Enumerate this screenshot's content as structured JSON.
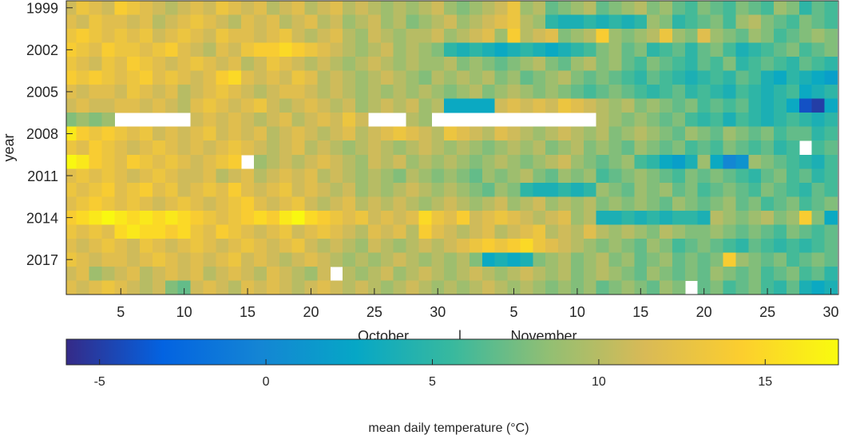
{
  "chart_data": {
    "type": "heatmap",
    "ylabel": "year",
    "xlabel": [
      "October",
      "|",
      "November"
    ],
    "x": [
      1,
      2,
      3,
      4,
      5,
      6,
      7,
      8,
      9,
      10,
      11,
      12,
      13,
      14,
      15,
      16,
      17,
      18,
      19,
      20,
      21,
      22,
      23,
      24,
      25,
      26,
      27,
      28,
      29,
      30,
      31,
      32,
      33,
      34,
      35,
      36,
      37,
      38,
      39,
      40,
      41,
      42,
      43,
      44,
      45,
      46,
      47,
      48,
      49,
      50,
      51,
      52,
      53,
      54,
      55,
      56,
      57,
      58,
      59,
      60,
      61
    ],
    "y": [
      1999,
      2000,
      2001,
      2002,
      2003,
      2004,
      2005,
      2006,
      2007,
      2008,
      2009,
      2010,
      2011,
      2012,
      2013,
      2014,
      2015,
      2016,
      2017,
      2018,
      2019
    ],
    "xlim": [
      0.7,
      61.6
    ],
    "ylim": [
      1998.5,
      2019.5
    ],
    "xticks": [
      5,
      10,
      15,
      20,
      25,
      30,
      {
        "value": 36,
        "label": "5"
      },
      {
        "value": 41,
        "label": "10"
      },
      {
        "value": 46,
        "label": "15"
      },
      {
        "value": 51,
        "label": "20"
      },
      {
        "value": 56,
        "label": "25"
      },
      {
        "value": 61,
        "label": "30"
      }
    ],
    "yticks": [
      1999,
      2002,
      2005,
      2008,
      2011,
      2014,
      2017
    ],
    "colormap": "parula",
    "colorbar": {
      "label": "mean daily temperature (°C)",
      "lim": [
        -6,
        17.2
      ],
      "ticks": [
        -5,
        0,
        5,
        10,
        15
      ]
    },
    "values": [
      [
        11,
        13,
        12,
        11,
        14,
        13,
        12,
        11,
        10,
        11,
        12,
        11,
        13,
        12,
        11,
        12,
        10,
        11,
        12,
        10,
        11,
        12,
        10,
        11,
        10,
        9,
        10,
        9,
        10,
        11,
        9,
        8,
        9,
        10,
        11,
        13,
        9,
        10,
        7,
        8,
        9,
        10,
        7,
        8,
        9,
        10,
        8,
        9,
        7,
        6,
        8,
        7,
        6,
        8,
        7,
        6,
        9,
        8,
        5,
        7,
        6
      ],
      [
        12,
        11,
        13,
        12,
        12,
        11,
        12,
        10,
        11,
        12,
        13,
        12,
        11,
        10,
        12,
        11,
        12,
        10,
        11,
        12,
        10,
        11,
        9,
        10,
        11,
        9,
        10,
        8,
        9,
        10,
        11,
        9,
        10,
        11,
        12,
        13,
        10,
        9,
        5,
        4,
        4,
        5,
        4,
        5,
        4,
        5,
        9,
        8,
        5,
        6,
        7,
        8,
        6,
        9,
        10,
        8,
        7,
        6,
        8,
        7,
        6
      ],
      [
        13,
        14,
        13,
        12,
        13,
        12,
        13,
        11,
        12,
        13,
        12,
        11,
        13,
        12,
        12,
        11,
        12,
        13,
        11,
        10,
        11,
        12,
        10,
        9,
        11,
        10,
        9,
        10,
        10,
        11,
        9,
        10,
        11,
        12,
        9,
        14,
        10,
        11,
        12,
        8,
        9,
        10,
        14,
        9,
        8,
        9,
        10,
        13,
        9,
        8,
        12,
        9,
        8,
        7,
        9,
        8,
        6,
        7,
        8,
        9,
        8
      ],
      [
        14,
        13,
        12,
        14,
        13,
        13,
        12,
        13,
        14,
        12,
        11,
        10,
        12,
        11,
        13,
        14,
        14,
        15,
        14,
        13,
        12,
        11,
        10,
        9,
        10,
        11,
        9,
        10,
        9,
        8,
        5,
        4,
        5,
        4,
        3,
        4,
        5,
        4,
        3,
        4,
        5,
        6,
        8,
        9,
        7,
        8,
        5,
        6,
        7,
        5,
        7,
        8,
        6,
        4,
        5,
        6,
        7,
        8,
        6,
        7,
        8
      ],
      [
        13,
        12,
        11,
        13,
        12,
        14,
        13,
        12,
        11,
        12,
        13,
        12,
        11,
        12,
        10,
        11,
        13,
        12,
        11,
        10,
        11,
        10,
        9,
        10,
        11,
        10,
        9,
        10,
        9,
        9,
        10,
        8,
        9,
        8,
        7,
        8,
        9,
        10,
        8,
        7,
        9,
        10,
        8,
        9,
        7,
        6,
        8,
        7,
        6,
        5,
        7,
        6,
        8,
        5,
        6,
        7,
        6,
        5,
        7,
        6,
        5
      ],
      [
        14,
        13,
        14,
        13,
        12,
        13,
        14,
        12,
        13,
        12,
        11,
        12,
        14,
        15,
        12,
        11,
        12,
        11,
        13,
        12,
        10,
        11,
        10,
        9,
        10,
        11,
        10,
        9,
        8,
        10,
        9,
        10,
        9,
        10,
        8,
        9,
        7,
        8,
        9,
        10,
        8,
        7,
        8,
        7,
        6,
        5,
        7,
        6,
        5,
        4,
        5,
        6,
        5,
        7,
        6,
        4,
        3,
        5,
        4,
        3,
        2
      ],
      [
        12,
        11,
        12,
        12,
        11,
        13,
        12,
        11,
        12,
        10,
        11,
        12,
        13,
        12,
        11,
        10,
        11,
        12,
        12,
        11,
        10,
        11,
        10,
        9,
        10,
        9,
        10,
        9,
        10,
        9,
        8,
        9,
        10,
        8,
        9,
        10,
        9,
        8,
        9,
        8,
        7,
        6,
        7,
        8,
        7,
        6,
        5,
        6,
        7,
        5,
        6,
        5,
        4,
        6,
        5,
        4,
        5,
        6,
        3,
        4,
        5
      ],
      [
        11,
        12,
        11,
        11,
        12,
        12,
        11,
        12,
        11,
        10,
        12,
        13,
        12,
        11,
        12,
        13,
        11,
        10,
        11,
        12,
        11,
        10,
        11,
        9,
        10,
        11,
        10,
        11,
        9,
        10,
        3,
        3,
        3,
        3,
        11,
        12,
        11,
        12,
        11,
        13,
        12,
        11,
        10,
        9,
        10,
        8,
        9,
        8,
        7,
        8,
        6,
        7,
        6,
        7,
        5,
        4,
        5,
        3,
        -4,
        -5,
        3
      ],
      [
        8,
        9,
        8,
        9,
        null,
        null,
        null,
        null,
        null,
        null,
        11,
        12,
        11,
        12,
        11,
        10,
        11,
        12,
        10,
        11,
        12,
        11,
        13,
        11,
        null,
        null,
        null,
        10,
        9,
        null,
        null,
        null,
        null,
        null,
        null,
        null,
        null,
        null,
        null,
        null,
        null,
        null,
        10,
        9,
        8,
        9,
        8,
        7,
        8,
        6,
        5,
        6,
        4,
        6,
        5,
        4,
        5,
        6,
        5,
        4,
        5
      ],
      [
        16,
        14,
        13,
        14,
        13,
        12,
        13,
        11,
        12,
        11,
        12,
        13,
        11,
        12,
        11,
        12,
        10,
        11,
        12,
        11,
        10,
        11,
        12,
        10,
        11,
        12,
        13,
        12,
        11,
        10,
        13,
        12,
        11,
        10,
        12,
        11,
        10,
        9,
        10,
        11,
        10,
        9,
        10,
        8,
        9,
        10,
        9,
        8,
        7,
        9,
        8,
        7,
        9,
        8,
        7,
        8,
        6,
        7,
        7,
        5,
        6
      ],
      [
        13,
        12,
        14,
        13,
        12,
        11,
        12,
        13,
        12,
        11,
        12,
        11,
        12,
        13,
        12,
        11,
        10,
        11,
        12,
        10,
        11,
        10,
        9,
        10,
        11,
        10,
        9,
        10,
        11,
        10,
        9,
        10,
        9,
        8,
        9,
        10,
        9,
        10,
        8,
        9,
        10,
        8,
        9,
        8,
        7,
        9,
        8,
        7,
        8,
        6,
        7,
        6,
        8,
        7,
        6,
        7,
        5,
        6,
        null,
        6,
        7
      ],
      [
        17,
        16,
        14,
        13,
        12,
        14,
        13,
        12,
        13,
        12,
        11,
        12,
        13,
        14,
        null,
        9,
        10,
        11,
        10,
        11,
        12,
        11,
        10,
        9,
        11,
        10,
        11,
        9,
        10,
        9,
        10,
        9,
        8,
        9,
        10,
        9,
        8,
        9,
        10,
        11,
        9,
        8,
        7,
        8,
        9,
        6,
        5,
        3,
        2,
        4,
        9,
        3,
        0,
        1,
        9,
        8,
        7,
        6,
        5,
        4,
        6
      ],
      [
        12,
        13,
        12,
        13,
        12,
        11,
        12,
        13,
        12,
        11,
        11,
        12,
        10,
        11,
        12,
        10,
        11,
        12,
        11,
        12,
        10,
        11,
        10,
        9,
        10,
        9,
        8,
        10,
        9,
        8,
        9,
        8,
        7,
        9,
        8,
        9,
        10,
        8,
        7,
        9,
        8,
        9,
        6,
        7,
        8,
        9,
        8,
        7,
        6,
        8,
        7,
        8,
        7,
        6,
        5,
        7,
        8,
        6,
        7,
        5,
        6
      ],
      [
        13,
        12,
        13,
        14,
        12,
        13,
        14,
        12,
        13,
        11,
        12,
        13,
        12,
        14,
        12,
        11,
        12,
        13,
        11,
        12,
        11,
        10,
        11,
        9,
        10,
        9,
        10,
        11,
        10,
        9,
        10,
        9,
        8,
        7,
        9,
        8,
        5,
        4,
        4,
        5,
        4,
        5,
        9,
        8,
        7,
        9,
        8,
        9,
        7,
        8,
        6,
        7,
        8,
        7,
        6,
        8,
        7,
        6,
        5,
        7,
        6
      ],
      [
        12,
        13,
        14,
        13,
        12,
        13,
        12,
        11,
        12,
        13,
        12,
        11,
        12,
        13,
        14,
        12,
        11,
        12,
        13,
        11,
        10,
        11,
        12,
        10,
        11,
        10,
        11,
        10,
        9,
        10,
        11,
        10,
        9,
        10,
        11,
        9,
        10,
        11,
        9,
        10,
        9,
        10,
        8,
        9,
        8,
        9,
        8,
        7,
        9,
        8,
        7,
        8,
        9,
        7,
        8,
        6,
        7,
        8,
        6,
        7,
        8
      ],
      [
        14,
        15,
        16,
        17,
        16,
        15,
        16,
        15,
        16,
        15,
        14,
        13,
        12,
        13,
        14,
        15,
        14,
        16,
        17,
        15,
        14,
        13,
        12,
        13,
        11,
        12,
        11,
        12,
        15,
        13,
        12,
        14,
        11,
        12,
        13,
        12,
        11,
        10,
        11,
        12,
        9,
        10,
        4,
        4,
        5,
        4,
        5,
        4,
        5,
        5,
        4,
        10,
        9,
        8,
        9,
        10,
        8,
        9,
        14,
        8,
        3
      ],
      [
        13,
        12,
        13,
        12,
        15,
        16,
        15,
        15,
        14,
        15,
        13,
        12,
        14,
        13,
        12,
        11,
        12,
        13,
        11,
        12,
        13,
        12,
        11,
        10,
        12,
        11,
        12,
        10,
        14,
        12,
        11,
        10,
        11,
        12,
        10,
        11,
        12,
        13,
        10,
        11,
        10,
        12,
        10,
        9,
        10,
        9,
        8,
        10,
        9,
        8,
        8,
        9,
        8,
        7,
        8,
        7,
        6,
        8,
        7,
        6,
        7
      ],
      [
        12,
        11,
        12,
        13,
        12,
        11,
        13,
        12,
        11,
        12,
        13,
        12,
        11,
        12,
        13,
        12,
        11,
        12,
        13,
        11,
        10,
        11,
        10,
        9,
        11,
        10,
        9,
        10,
        11,
        10,
        11,
        12,
        13,
        14,
        13,
        14,
        15,
        13,
        12,
        11,
        10,
        9,
        8,
        9,
        8,
        7,
        9,
        8,
        6,
        7,
        8,
        7,
        6,
        5,
        7,
        6,
        5,
        6,
        5,
        6,
        7
      ],
      [
        13,
        12,
        11,
        12,
        12,
        11,
        12,
        13,
        12,
        11,
        12,
        11,
        12,
        13,
        11,
        12,
        11,
        10,
        11,
        12,
        11,
        10,
        9,
        10,
        9,
        10,
        11,
        10,
        9,
        10,
        9,
        10,
        8,
        3,
        4,
        3,
        4,
        8,
        9,
        10,
        8,
        9,
        10,
        8,
        9,
        7,
        8,
        9,
        7,
        8,
        7,
        8,
        14,
        9,
        8,
        7,
        8,
        6,
        7,
        8,
        7
      ],
      [
        11,
        12,
        9,
        10,
        11,
        12,
        10,
        11,
        12,
        11,
        12,
        10,
        11,
        12,
        11,
        10,
        12,
        11,
        10,
        9,
        11,
        null,
        10,
        9,
        10,
        11,
        9,
        10,
        11,
        10,
        9,
        10,
        11,
        10,
        9,
        10,
        11,
        10,
        9,
        10,
        8,
        9,
        10,
        9,
        8,
        7,
        9,
        8,
        7,
        8,
        7,
        9,
        8,
        7,
        8,
        6,
        7,
        8,
        6,
        7,
        5
      ],
      [
        12,
        11,
        12,
        13,
        12,
        11,
        10,
        11,
        8,
        7,
        11,
        12,
        11,
        10,
        12,
        11,
        12,
        11,
        10,
        11,
        12,
        11,
        10,
        11,
        10,
        9,
        10,
        11,
        10,
        9,
        10,
        9,
        10,
        11,
        10,
        9,
        10,
        9,
        8,
        9,
        8,
        9,
        7,
        8,
        9,
        8,
        7,
        9,
        8,
        null,
        7,
        8,
        6,
        7,
        8,
        6,
        5,
        7,
        4,
        3,
        4
      ]
    ]
  }
}
